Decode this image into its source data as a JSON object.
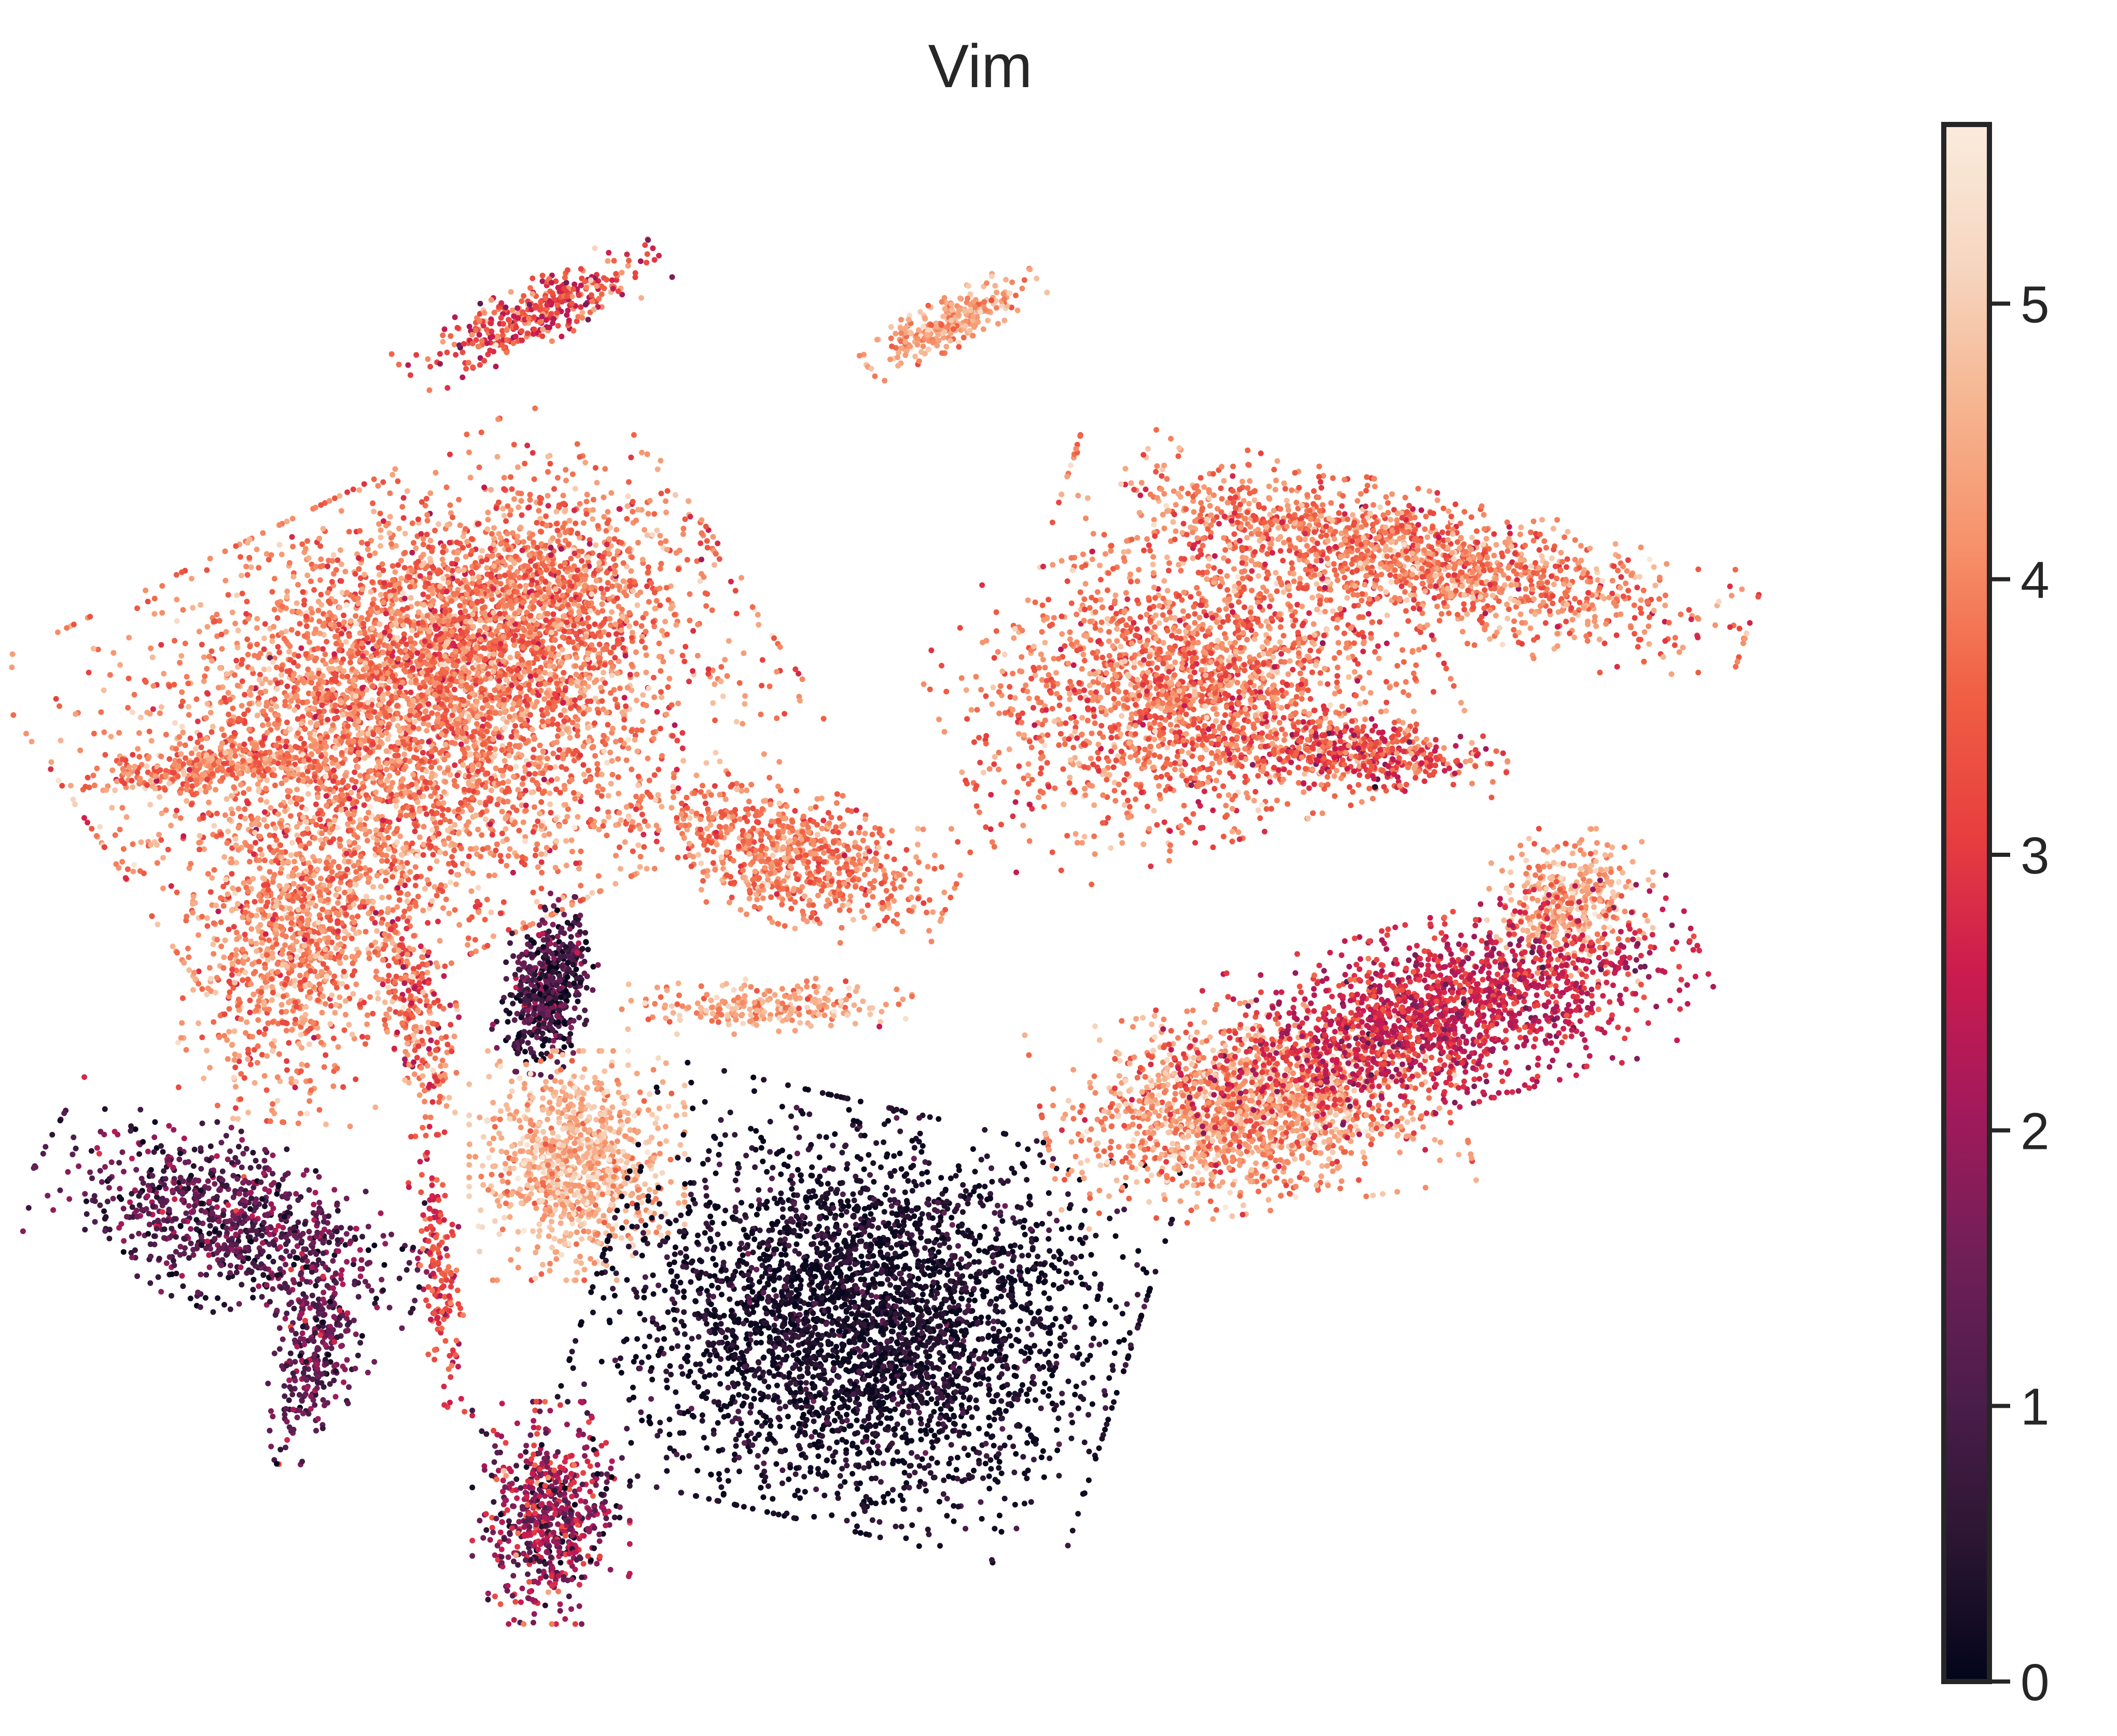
{
  "chart_data": {
    "type": "scatter",
    "title": "Vim",
    "embedding": "UMAP",
    "axes_visible": false,
    "grid": false,
    "legend": "none",
    "colormap": "rocket",
    "colormap_stops": [
      "#03051a",
      "#2b1632",
      "#4c1d4b",
      "#701f57",
      "#a11a5b",
      "#cb1b4f",
      "#e83f3f",
      "#f06043",
      "#f6906a",
      "#f6b48f",
      "#f6d6c0",
      "#faebdd"
    ],
    "colorbar": {
      "vmin": 0,
      "vmax": 5.65,
      "ticks": [
        {
          "value": 0,
          "label": "0"
        },
        {
          "value": 1,
          "label": "1"
        },
        {
          "value": 2,
          "label": "2"
        },
        {
          "value": 3,
          "label": "3"
        },
        {
          "value": 4,
          "label": "4"
        },
        {
          "value": 5,
          "label": "5"
        }
      ]
    },
    "xlim": [
      0,
      100
    ],
    "ylim": [
      0,
      100
    ],
    "clusters": [
      {
        "id": "top-left-small",
        "x": 23.9,
        "y": 90.8,
        "sx": 3.5,
        "sy": 0.9,
        "angle": 30,
        "n": 380,
        "mean": 3.2,
        "sd": 0.8
      },
      {
        "id": "top-right-small",
        "x": 48.2,
        "y": 90.3,
        "sx": 2.4,
        "sy": 0.7,
        "angle": 32,
        "n": 280,
        "mean": 4.3,
        "sd": 0.5
      },
      {
        "id": "left-main-body",
        "x": 17.5,
        "y": 63.0,
        "sx": 8.5,
        "sy": 6.5,
        "angle": 30,
        "n": 4200,
        "mean": 3.9,
        "sd": 0.6
      },
      {
        "id": "left-main-top",
        "x": 22.0,
        "y": 70.5,
        "sx": 5.5,
        "sy": 3.2,
        "angle": 30,
        "n": 1300,
        "mean": 3.8,
        "sd": 0.6
      },
      {
        "id": "left-arm",
        "x": 5.5,
        "y": 59.5,
        "sx": 3.5,
        "sy": 0.7,
        "angle": 8,
        "n": 300,
        "mean": 4.0,
        "sd": 0.5
      },
      {
        "id": "left-lower-lobe",
        "x": 10.0,
        "y": 47.0,
        "sx": 2.5,
        "sy": 5.0,
        "angle": -5,
        "n": 900,
        "mean": 4.0,
        "sd": 0.6
      },
      {
        "id": "left-lower-branch",
        "x": 17.0,
        "y": 43.5,
        "sx": 1.0,
        "sy": 4.0,
        "angle": 10,
        "n": 300,
        "mean": 3.6,
        "sd": 0.7
      },
      {
        "id": "left-mid-dark",
        "x": 24.8,
        "y": 44.5,
        "sx": 1.1,
        "sy": 2.6,
        "angle": -10,
        "n": 550,
        "mean": 0.9,
        "sd": 0.7
      },
      {
        "id": "far-left-dark",
        "x": 6.5,
        "y": 28.0,
        "sx": 5.0,
        "sy": 2.5,
        "angle": -25,
        "n": 900,
        "mean": 1.2,
        "sd": 0.7
      },
      {
        "id": "far-left-dark-tail",
        "x": 11.5,
        "y": 19.5,
        "sx": 1.0,
        "sy": 3.5,
        "angle": -10,
        "n": 300,
        "mean": 1.4,
        "sd": 0.6
      },
      {
        "id": "left-thin-strip",
        "x": 18.5,
        "y": 24.5,
        "sx": 0.5,
        "sy": 4.0,
        "angle": 5,
        "n": 160,
        "mean": 3.1,
        "sd": 0.5
      },
      {
        "id": "center-left-round",
        "x": 26.5,
        "y": 32.0,
        "sx": 2.6,
        "sy": 3.3,
        "angle": 0,
        "n": 1000,
        "mean": 4.6,
        "sd": 0.5
      },
      {
        "id": "bottom-center-small",
        "x": 25.0,
        "y": 8.0,
        "sx": 1.9,
        "sy": 3.2,
        "angle": 0,
        "n": 650,
        "mean": 2.0,
        "sd": 0.9
      },
      {
        "id": "center-mid-oval",
        "x": 39.0,
        "y": 53.5,
        "sx": 4.0,
        "sy": 2.0,
        "angle": -20,
        "n": 750,
        "mean": 3.9,
        "sd": 0.5
      },
      {
        "id": "center-small-strip",
        "x": 37.5,
        "y": 43.0,
        "sx": 3.5,
        "sy": 0.8,
        "angle": 0,
        "n": 250,
        "mean": 4.3,
        "sd": 0.5
      },
      {
        "id": "center-big-dark",
        "x": 43.0,
        "y": 21.5,
        "sx": 6.5,
        "sy": 6.0,
        "angle": -15,
        "n": 3600,
        "mean": 0.25,
        "sd": 0.45
      },
      {
        "id": "right-upper-body",
        "x": 62.0,
        "y": 65.0,
        "sx": 6.0,
        "sy": 4.5,
        "angle": 20,
        "n": 2100,
        "mean": 3.8,
        "sd": 0.6
      },
      {
        "id": "right-upper-arm",
        "x": 74.5,
        "y": 74.0,
        "sx": 8.5,
        "sy": 2.0,
        "angle": -15,
        "n": 1500,
        "mean": 3.9,
        "sd": 0.6
      },
      {
        "id": "right-mid-stub",
        "x": 72.0,
        "y": 60.5,
        "sx": 3.5,
        "sy": 1.0,
        "angle": -5,
        "n": 450,
        "mean": 3.2,
        "sd": 0.7
      },
      {
        "id": "right-small-round",
        "x": 84.0,
        "y": 50.0,
        "sx": 2.0,
        "sy": 2.2,
        "angle": 0,
        "n": 400,
        "mean": 4.4,
        "sd": 0.5
      },
      {
        "id": "right-lower-orange",
        "x": 65.5,
        "y": 36.0,
        "sx": 5.0,
        "sy": 3.0,
        "angle": 10,
        "n": 1600,
        "mean": 4.2,
        "sd": 0.6
      },
      {
        "id": "right-lower-magenta",
        "x": 76.5,
        "y": 42.5,
        "sx": 6.5,
        "sy": 2.7,
        "angle": 18,
        "n": 1700,
        "mean": 2.6,
        "sd": 0.5
      }
    ],
    "pixel_scale_note": ""
  }
}
